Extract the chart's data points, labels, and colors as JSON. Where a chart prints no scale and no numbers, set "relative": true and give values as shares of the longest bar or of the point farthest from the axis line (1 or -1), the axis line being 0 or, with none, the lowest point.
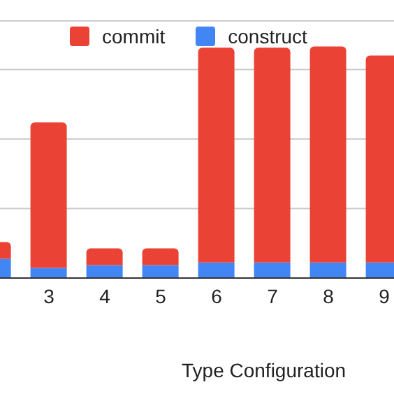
{
  "chart_data": {
    "type": "bar",
    "xlabel": "Type Configuration",
    "categories": [
      null,
      "3",
      "4",
      "5",
      "6",
      "7",
      "8",
      "9"
    ],
    "stacked": true,
    "relative": true,
    "grid": "y",
    "legend": "top",
    "series": [
      {
        "name": "construct",
        "color": "#4285f4",
        "values": [
          0.083,
          0.044,
          0.056,
          0.056,
          0.067,
          0.067,
          0.067,
          0.067
        ]
      },
      {
        "name": "commit",
        "color": "#ea4335",
        "values": [
          0.072,
          0.628,
          0.072,
          0.072,
          0.928,
          0.928,
          0.933,
          0.894
        ]
      }
    ]
  }
}
